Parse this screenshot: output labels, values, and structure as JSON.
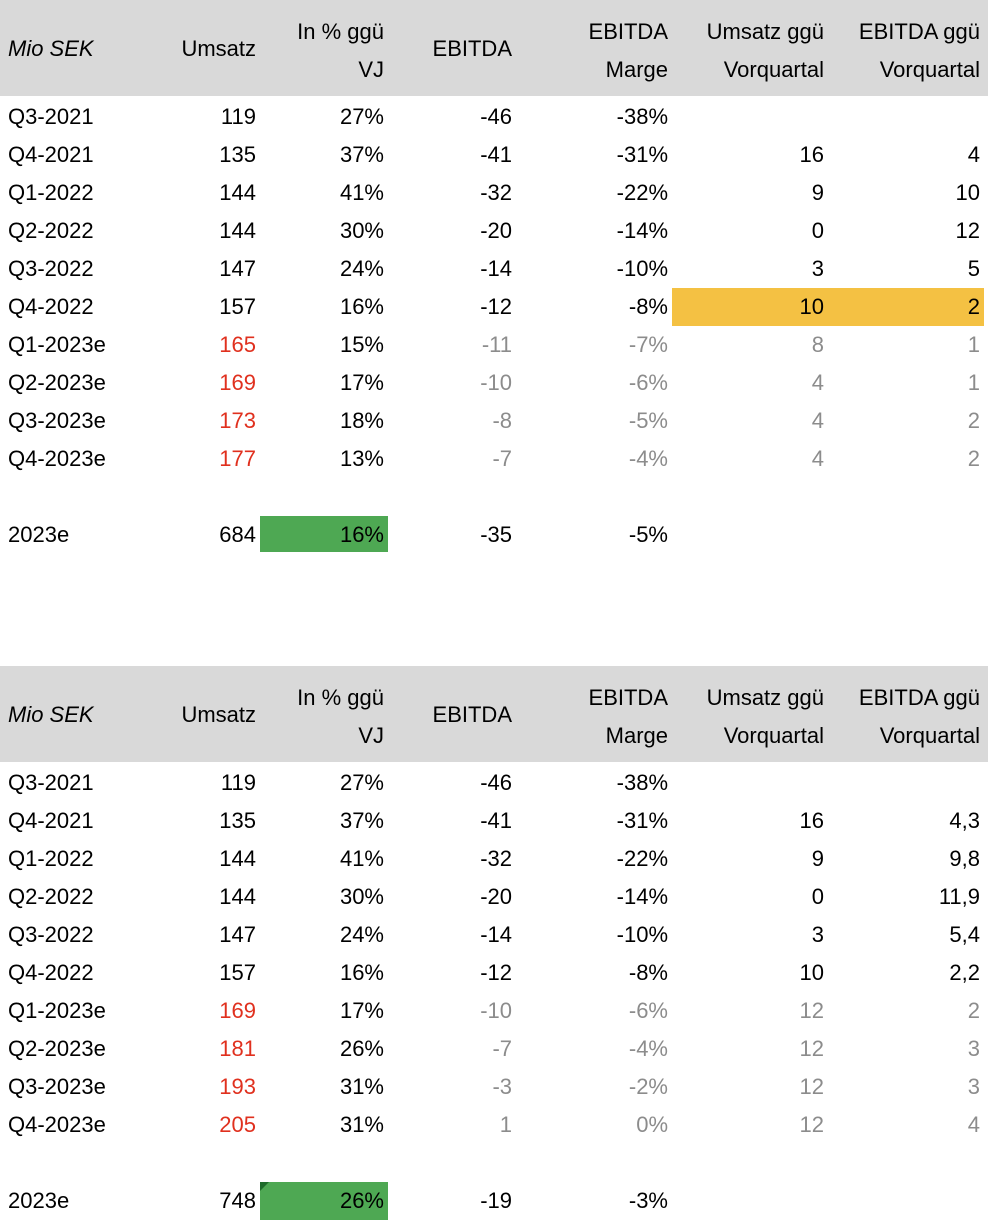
{
  "tables": [
    {
      "header": [
        [
          "Mio SEK"
        ],
        [
          "Umsatz"
        ],
        [
          "In % ggü",
          "VJ"
        ],
        [
          "EBITDA"
        ],
        [
          "EBITDA",
          "Marge"
        ],
        [
          "Umsatz ggü",
          "Vorquartal"
        ],
        [
          "EBITDA ggü",
          "Vorquartal"
        ]
      ],
      "rows": [
        [
          "Q3-2021",
          "119",
          "27%",
          "-46",
          "-38%"
        ],
        [
          "Q4-2021",
          "135",
          "37%",
          "-41",
          "-31%",
          "16",
          "4"
        ],
        [
          "Q1-2022",
          "144",
          "41%",
          "-32",
          "-22%",
          "9",
          "10"
        ],
        [
          "Q2-2022",
          "144",
          "30%",
          "-20",
          "-14%",
          "0",
          "12"
        ],
        [
          "Q3-2022",
          "147",
          "24%",
          "-14",
          "-10%",
          "3",
          "5"
        ],
        [
          "Q4-2022",
          "157",
          "16%",
          "-12",
          "-8%",
          "10",
          "2"
        ],
        [
          "Q1-2023e",
          "165",
          "15%",
          "-11",
          "-7%",
          "8",
          "1"
        ],
        [
          "Q2-2023e",
          "169",
          "17%",
          "-10",
          "-6%",
          "4",
          "1"
        ],
        [
          "Q3-2023e",
          "173",
          "18%",
          "-8",
          "-5%",
          "4",
          "2"
        ],
        [
          "Q4-2023e",
          "177",
          "13%",
          "-7",
          "-4%",
          "4",
          "2"
        ]
      ],
      "total": [
        "2023e",
        "684",
        "16%",
        "-35",
        "-5%"
      ]
    },
    {
      "header": [
        [
          "Mio SEK"
        ],
        [
          "Umsatz"
        ],
        [
          "In % ggü",
          "VJ"
        ],
        [
          "EBITDA"
        ],
        [
          "EBITDA",
          "Marge"
        ],
        [
          "Umsatz ggü",
          "Vorquartal"
        ],
        [
          "EBITDA ggü",
          "Vorquartal"
        ]
      ],
      "rows": [
        [
          "Q3-2021",
          "119",
          "27%",
          "-46",
          "-38%"
        ],
        [
          "Q4-2021",
          "135",
          "37%",
          "-41",
          "-31%",
          "16",
          "4,3"
        ],
        [
          "Q1-2022",
          "144",
          "41%",
          "-32",
          "-22%",
          "9",
          "9,8"
        ],
        [
          "Q2-2022",
          "144",
          "30%",
          "-20",
          "-14%",
          "0",
          "11,9"
        ],
        [
          "Q3-2022",
          "147",
          "24%",
          "-14",
          "-10%",
          "3",
          "5,4"
        ],
        [
          "Q4-2022",
          "157",
          "16%",
          "-12",
          "-8%",
          "10",
          "2,2"
        ],
        [
          "Q1-2023e",
          "169",
          "17%",
          "-10",
          "-6%",
          "12",
          "2"
        ],
        [
          "Q2-2023e",
          "181",
          "26%",
          "-7",
          "-4%",
          "12",
          "3"
        ],
        [
          "Q3-2023e",
          "193",
          "31%",
          "-3",
          "-2%",
          "12",
          "3"
        ],
        [
          "Q4-2023e",
          "205",
          "31%",
          "1",
          "0%",
          "12",
          "4"
        ]
      ],
      "total": [
        "2023e",
        "748",
        "26%",
        "-19",
        "-3%"
      ]
    }
  ]
}
